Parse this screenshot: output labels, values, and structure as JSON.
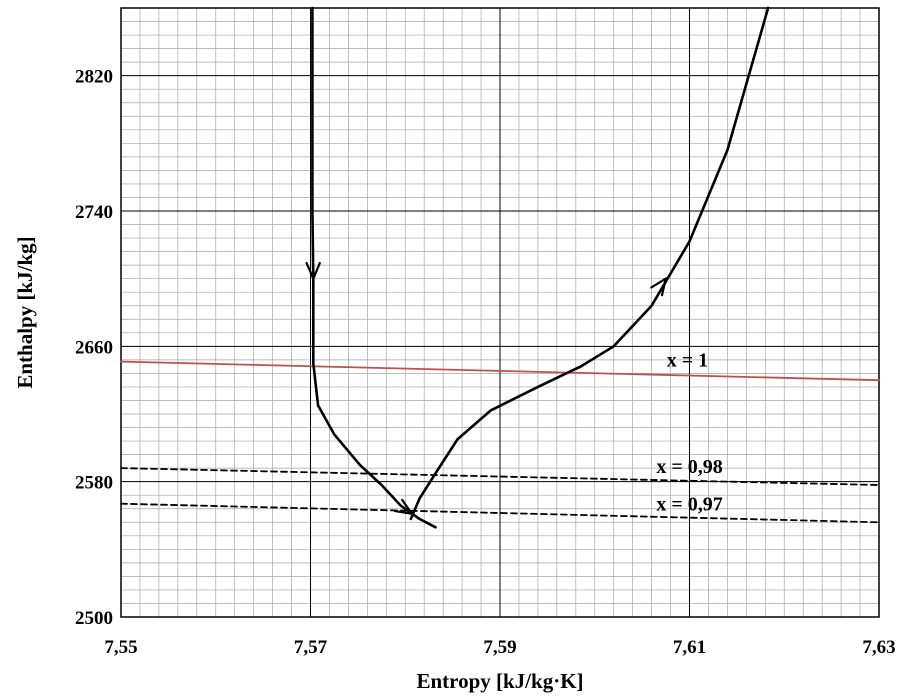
{
  "chart_data": {
    "type": "line",
    "xlabel": "Entropy [kJ/kg·K]",
    "ylabel": "Enthalpy [kJ/kg]",
    "xlim": [
      7.55,
      7.63
    ],
    "ylim": [
      2500,
      2860
    ],
    "x_ticks": [
      7.55,
      7.57,
      7.59,
      7.61,
      7.63
    ],
    "x_tick_labels": [
      "7,55",
      "7,57",
      "7,59",
      "7,61",
      "7,63"
    ],
    "y_ticks": [
      2500,
      2580,
      2660,
      2740,
      2820
    ],
    "y_tick_labels": [
      "2500",
      "2580",
      "2660",
      "2740",
      "2820"
    ],
    "grid": {
      "major": true,
      "minor": true,
      "minor_x_step": 0.002,
      "minor_y_step": 8
    },
    "colors": {
      "saturation_line": "#c0504d",
      "process": "#000000",
      "quality_lines": "#000000",
      "grid_major": "#000000",
      "grid_minor": "#a6a6a6"
    },
    "series": [
      {
        "label": "x = 1",
        "style": "solid",
        "color": "#c0504d",
        "points": [
          [
            7.55,
            2651
          ],
          [
            7.63,
            2640
          ]
        ],
        "label_at": [
          7.6076,
          2648
        ]
      },
      {
        "label": "x = 0,98",
        "style": "dashed",
        "color": "#000000",
        "points": [
          [
            7.55,
            2588
          ],
          [
            7.63,
            2578
          ]
        ],
        "label_at": [
          7.6065,
          2585
        ]
      },
      {
        "label": "x = 0,97",
        "style": "dashed",
        "color": "#000000",
        "points": [
          [
            7.55,
            2567
          ],
          [
            7.63,
            2556
          ]
        ],
        "label_at": [
          7.6065,
          2563
        ]
      },
      {
        "style": "solid",
        "color": "#000000",
        "points": [
          [
            7.5702,
            2860
          ],
          [
            7.5702,
            2790
          ],
          [
            7.5702,
            2740
          ],
          [
            7.5703,
            2700
          ],
          [
            7.5703,
            2670
          ],
          [
            7.5703,
            2650
          ],
          [
            7.5708,
            2625
          ],
          [
            7.5725,
            2608
          ],
          [
            7.5752,
            2590
          ],
          [
            7.5775,
            2578
          ],
          [
            7.5795,
            2566
          ],
          [
            7.5815,
            2558
          ],
          [
            7.5832,
            2553
          ]
        ],
        "arrows_at": [
          [
            7.5703,
            2700
          ],
          [
            7.5807,
            2561
          ]
        ]
      },
      {
        "style": "solid",
        "color": "#000000",
        "points": [
          [
            7.5806,
            2558
          ],
          [
            7.5815,
            2570
          ],
          [
            7.5832,
            2585
          ],
          [
            7.5855,
            2605
          ],
          [
            7.589,
            2622
          ],
          [
            7.594,
            2636
          ],
          [
            7.5985,
            2648
          ],
          [
            7.602,
            2660
          ],
          [
            7.606,
            2684
          ],
          [
            7.61,
            2722
          ],
          [
            7.614,
            2776
          ],
          [
            7.6183,
            2860
          ]
        ],
        "arrows_at": [
          [
            7.6075,
            2700
          ]
        ]
      }
    ]
  }
}
